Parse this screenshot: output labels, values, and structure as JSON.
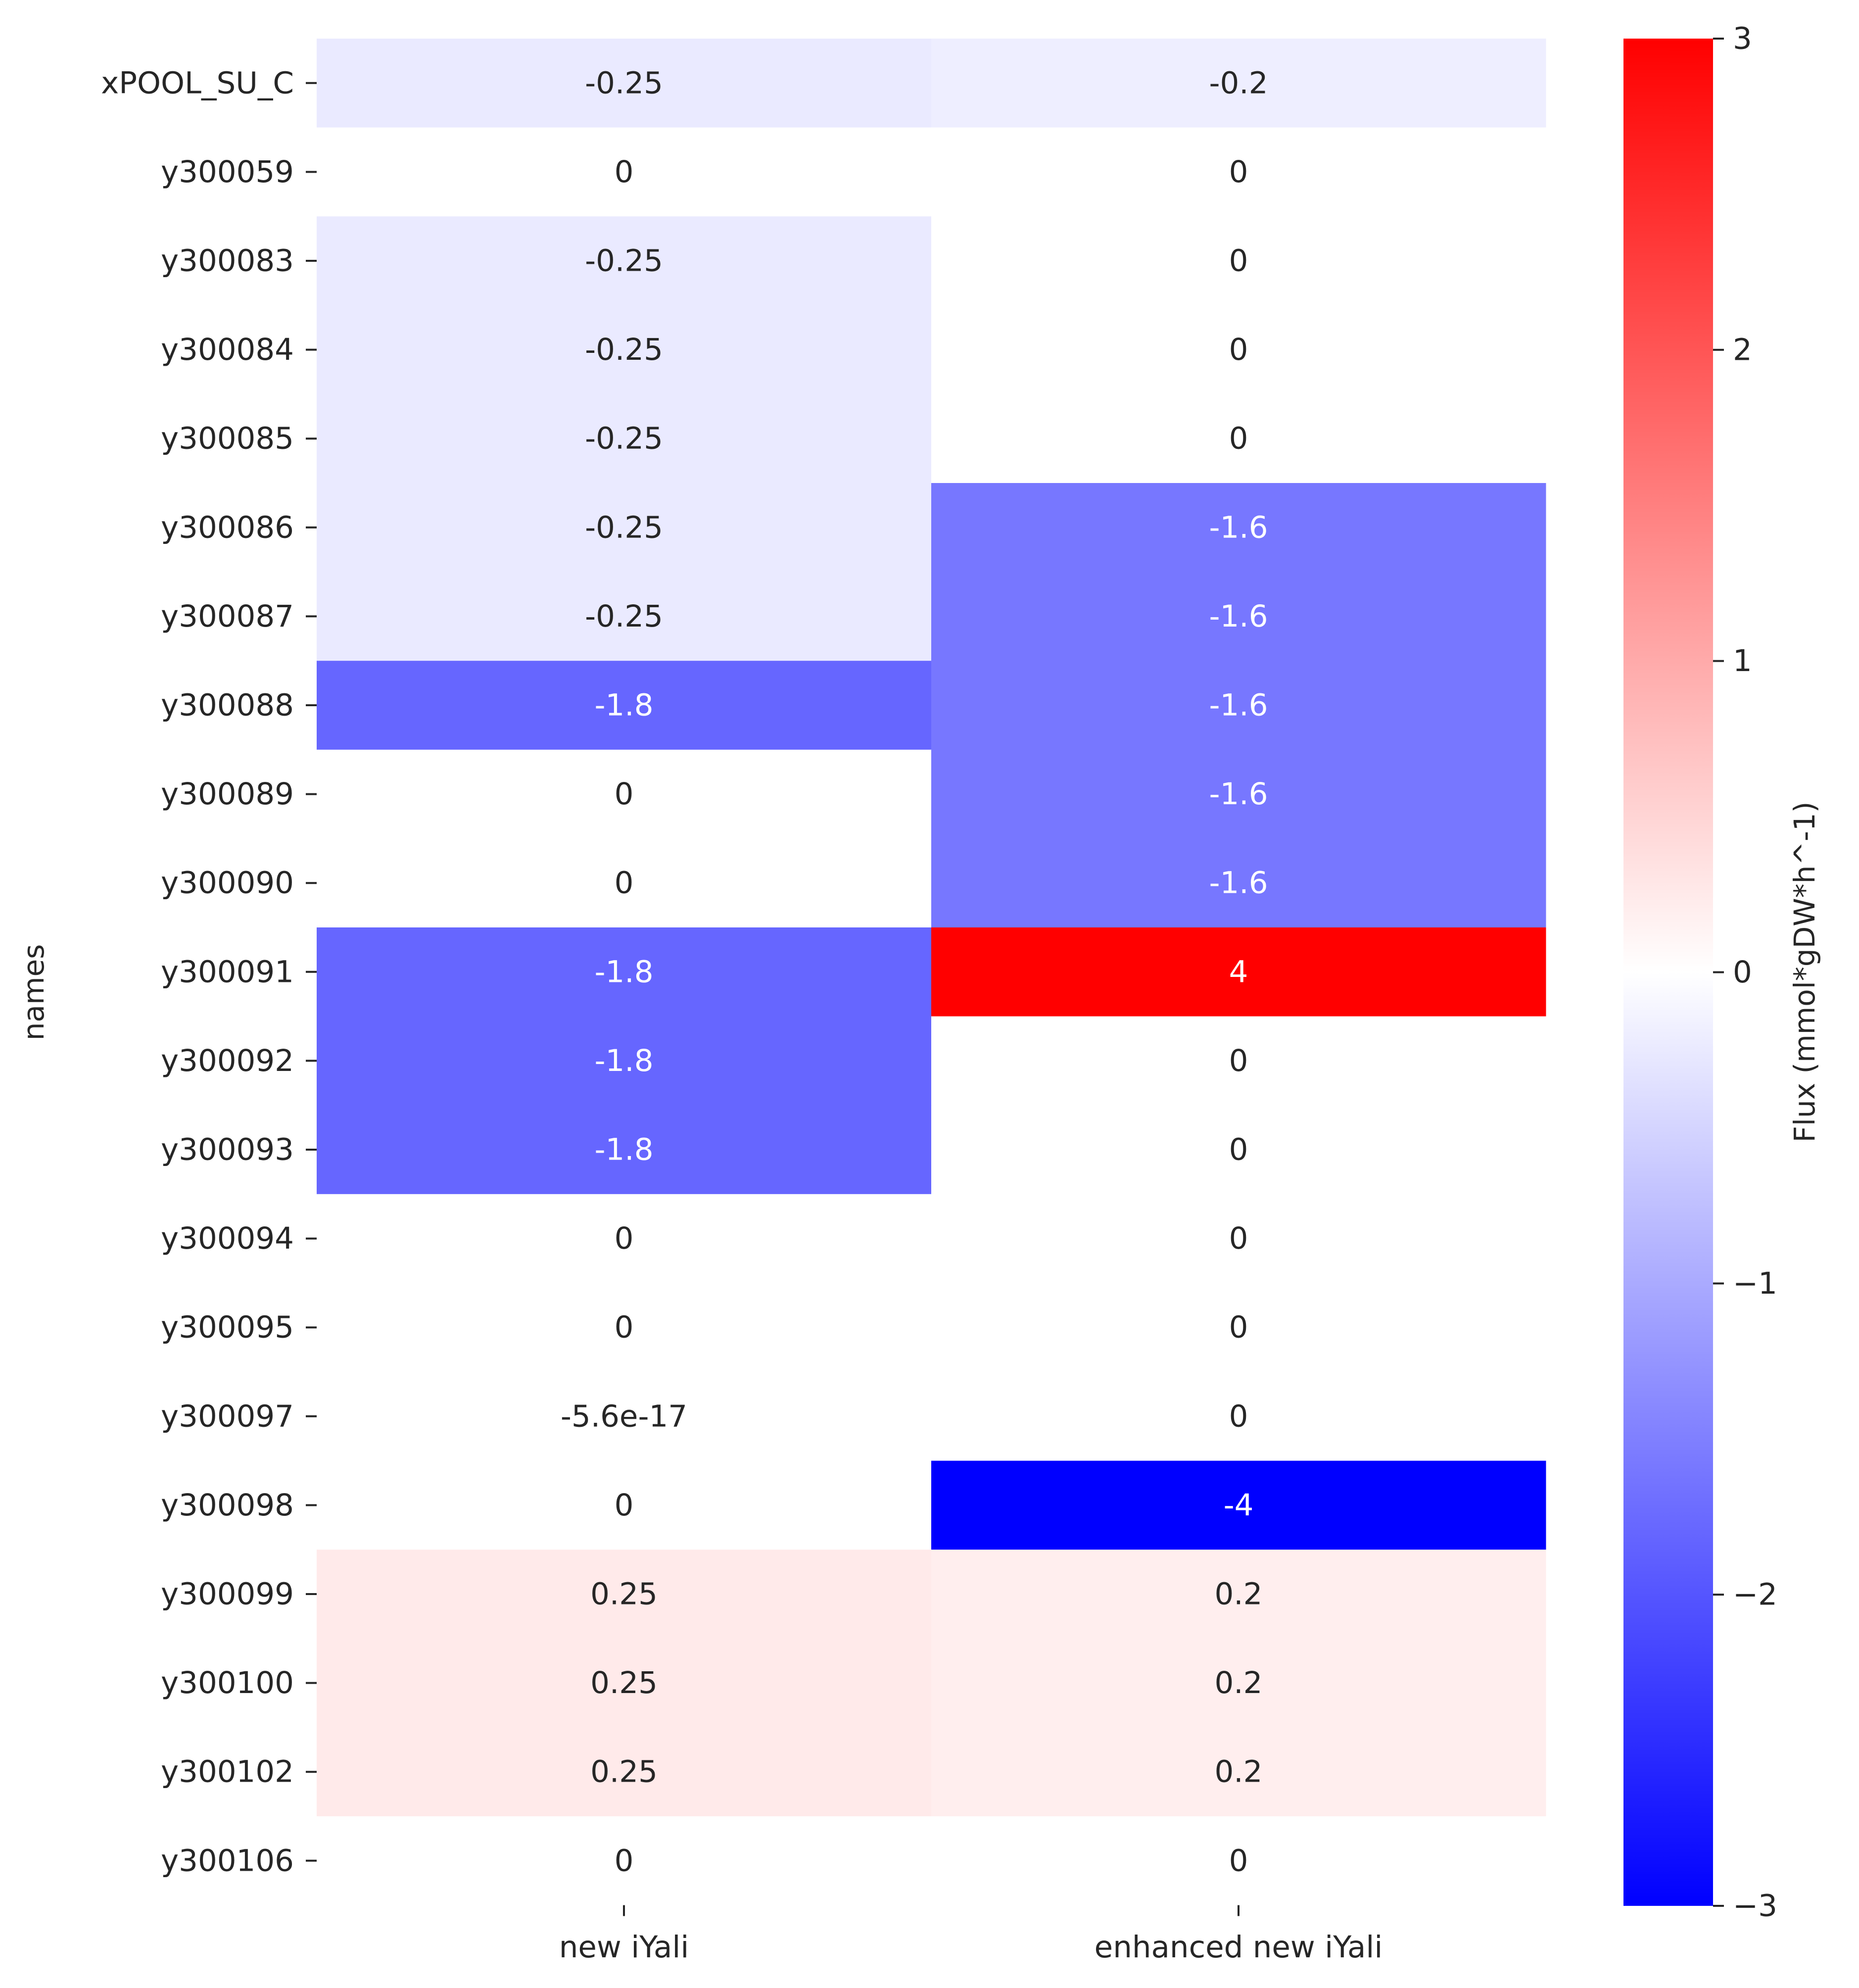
{
  "chart_data": {
    "type": "heatmap",
    "title": "",
    "xlabel": "",
    "ylabel": "names",
    "columns": [
      "new iYali",
      "enhanced new iYali"
    ],
    "rows": [
      {
        "name": "xPOOL_SU_C",
        "values": [
          -0.25,
          -0.2
        ],
        "labels": [
          "-0.25",
          "-0.2"
        ]
      },
      {
        "name": "y300059",
        "values": [
          0,
          0
        ],
        "labels": [
          "0",
          "0"
        ]
      },
      {
        "name": "y300083",
        "values": [
          -0.25,
          0
        ],
        "labels": [
          "-0.25",
          "0"
        ]
      },
      {
        "name": "y300084",
        "values": [
          -0.25,
          0
        ],
        "labels": [
          "-0.25",
          "0"
        ]
      },
      {
        "name": "y300085",
        "values": [
          -0.25,
          0
        ],
        "labels": [
          "-0.25",
          "0"
        ]
      },
      {
        "name": "y300086",
        "values": [
          -0.25,
          -1.6
        ],
        "labels": [
          "-0.25",
          "-1.6"
        ]
      },
      {
        "name": "y300087",
        "values": [
          -0.25,
          -1.6
        ],
        "labels": [
          "-0.25",
          "-1.6"
        ]
      },
      {
        "name": "y300088",
        "values": [
          -1.8,
          -1.6
        ],
        "labels": [
          "-1.8",
          "-1.6"
        ]
      },
      {
        "name": "y300089",
        "values": [
          0,
          -1.6
        ],
        "labels": [
          "0",
          "-1.6"
        ]
      },
      {
        "name": "y300090",
        "values": [
          0,
          -1.6
        ],
        "labels": [
          "0",
          "-1.6"
        ]
      },
      {
        "name": "y300091",
        "values": [
          -1.8,
          4
        ],
        "labels": [
          "-1.8",
          "4"
        ]
      },
      {
        "name": "y300092",
        "values": [
          -1.8,
          0
        ],
        "labels": [
          "-1.8",
          "0"
        ]
      },
      {
        "name": "y300093",
        "values": [
          -1.8,
          0
        ],
        "labels": [
          "-1.8",
          "0"
        ]
      },
      {
        "name": "y300094",
        "values": [
          0,
          0
        ],
        "labels": [
          "0",
          "0"
        ]
      },
      {
        "name": "y300095",
        "values": [
          0,
          0
        ],
        "labels": [
          "0",
          "0"
        ]
      },
      {
        "name": "y300097",
        "values": [
          -5.6e-17,
          0
        ],
        "labels": [
          "-5.6e-17",
          "0"
        ]
      },
      {
        "name": "y300098",
        "values": [
          0,
          -4
        ],
        "labels": [
          "0",
          "-4"
        ]
      },
      {
        "name": "y300099",
        "values": [
          0.25,
          0.2
        ],
        "labels": [
          "0.25",
          "0.2"
        ]
      },
      {
        "name": "y300100",
        "values": [
          0.25,
          0.2
        ],
        "labels": [
          "0.25",
          "0.2"
        ]
      },
      {
        "name": "y300102",
        "values": [
          0.25,
          0.2
        ],
        "labels": [
          "0.25",
          "0.2"
        ]
      },
      {
        "name": "y300106",
        "values": [
          0,
          0
        ],
        "labels": [
          "0",
          "0"
        ]
      }
    ],
    "colorbar": {
      "label": "Flux (mmol*gDW*h^-1)",
      "vmin": -3,
      "vmax": 3,
      "ticks": [
        3,
        2,
        1,
        0,
        -1,
        -2,
        -3
      ],
      "tick_labels": [
        "3",
        "2",
        "1",
        "0",
        "−1",
        "−2",
        "−3"
      ],
      "colormap": "bwr",
      "colors": {
        "low": "#0000ff",
        "mid": "#ffffff",
        "high": "#ff0000"
      }
    },
    "grid": false
  }
}
